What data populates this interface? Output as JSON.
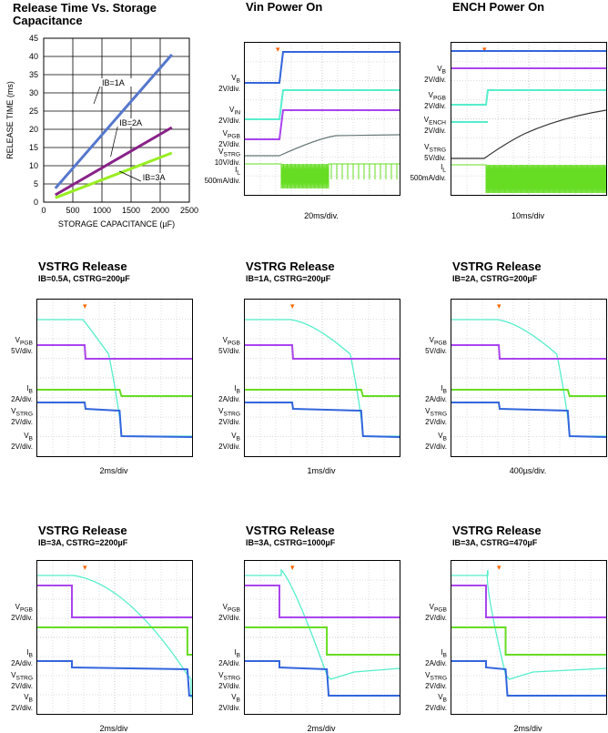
{
  "chart_data": [
    {
      "type": "line",
      "title": "Release Time Vs. Storage Capacitance",
      "xlabel": "STORAGE CAPACITANCE (µF)",
      "ylabel": "RELEASE TIME (ms)",
      "xlim": [
        0,
        2500
      ],
      "ylim": [
        0,
        45
      ],
      "xticks": [
        "0",
        "500",
        "1000",
        "1500",
        "2000",
        "2500"
      ],
      "yticks": [
        "0",
        "5",
        "10",
        "15",
        "20",
        "25",
        "30",
        "35",
        "40",
        "45"
      ],
      "grid": true,
      "series": [
        {
          "name": "IB=1A",
          "color": "#5577cc",
          "x": [
            200,
            2200
          ],
          "y": [
            3.8,
            40.5
          ]
        },
        {
          "name": "IB=2A",
          "color": "#882288",
          "x": [
            200,
            2200
          ],
          "y": [
            2.0,
            20.5
          ]
        },
        {
          "name": "IB=3A",
          "color": "#99ee22",
          "x": [
            200,
            2200
          ],
          "y": [
            1.2,
            13.5
          ]
        }
      ]
    },
    {
      "type": "line",
      "title": "Vin Power On",
      "timebase": "20ms/div.",
      "labels": [
        "VB\n2V/div.",
        "VIN\n2V/div.",
        "VPGB\n2V/div.",
        "VSTRG\n10V/div.",
        "IL\n500mA/div."
      ]
    },
    {
      "type": "line",
      "title": "ENCH Power On",
      "timebase": "10ms/div",
      "labels": [
        "VB\n2V/div.",
        "VPGB\n2V/div.",
        "VENCH\n2V/div.",
        "VSTRG\n5V/div.",
        "IL\n500mA/div."
      ]
    },
    {
      "type": "line",
      "title": "VSTRG Release",
      "subtitle": "IB=0.5A, CSTRG=200µF",
      "timebase": "2ms/div"
    },
    {
      "type": "line",
      "title": "VSTRG Release",
      "subtitle": "IB=1A, CSTRG=200µF",
      "timebase": "1ms/div"
    },
    {
      "type": "line",
      "title": "VSTRG Release",
      "subtitle": "IB=2A, CSTRG=200µF",
      "timebase": "400µs/div."
    },
    {
      "type": "line",
      "title": "VSTRG Release",
      "subtitle": "IB=3A, CSTRG=2200µF",
      "timebase": "2ms/div"
    },
    {
      "type": "line",
      "title": "VSTRG Release",
      "subtitle": "IB=3A, CSTRG=1000µF",
      "timebase": "2ms/div"
    },
    {
      "type": "line",
      "title": "VSTRG Release",
      "subtitle": "IB=3A, CSTRG=470µF",
      "timebase": "2ms/div"
    }
  ],
  "release_labels": {
    "vpgb": "VPGB",
    "vpgb_div5": "5V/div.",
    "vpgb_div2": "2V/div.",
    "ib": "IB",
    "ib_div": "2A/div.",
    "vstrg": "VSTRG",
    "vstrg_div": "2V/div.",
    "vb": "VB",
    "vb_div": "2V/div."
  },
  "colors": {
    "blue": "#3366dd",
    "cyan": "#55eecc",
    "purple": "#aa44ee",
    "green": "#66dd22",
    "gray": "#667777",
    "orange": "#ff6600"
  }
}
